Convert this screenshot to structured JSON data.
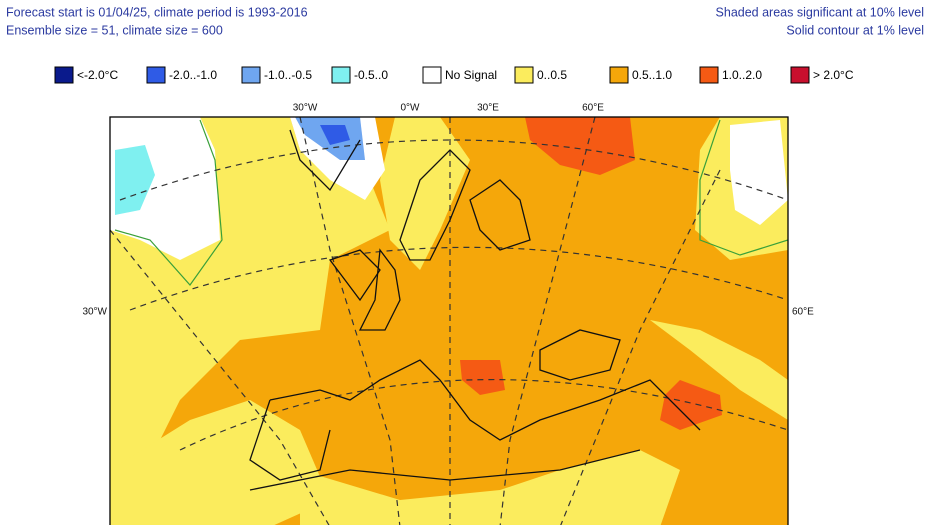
{
  "header": {
    "left": [
      "Forecast start is 01/04/25, climate period is 1993-2016",
      "Ensemble size = 51, climate size = 600"
    ],
    "right": [
      "Shaded areas significant at 10% level",
      "Solid contour at 1% level"
    ]
  },
  "legend": [
    {
      "label": "<-2.0°C",
      "color": "#0a1a8c"
    },
    {
      "label": "-2.0..-1.0",
      "color": "#2f5be6"
    },
    {
      "label": "-1.0..-0.5",
      "color": "#6fa6f0"
    },
    {
      "label": "-0.5..0",
      "color": "#7ff0f0"
    },
    {
      "label": "No Signal",
      "color": "#ffffff"
    },
    {
      "label": "0..0.5",
      "color": "#fbec5d"
    },
    {
      "label": "0.5..1.0",
      "color": "#f5a70a"
    },
    {
      "label": "1.0..2.0",
      "color": "#f55a14"
    },
    {
      "label": "> 2.0°C",
      "color": "#c8102e"
    }
  ],
  "map_labels": {
    "top": [
      "30°W",
      "0°W",
      "30°E",
      "60°E"
    ],
    "left": "30°W",
    "right": "60°E"
  }
}
